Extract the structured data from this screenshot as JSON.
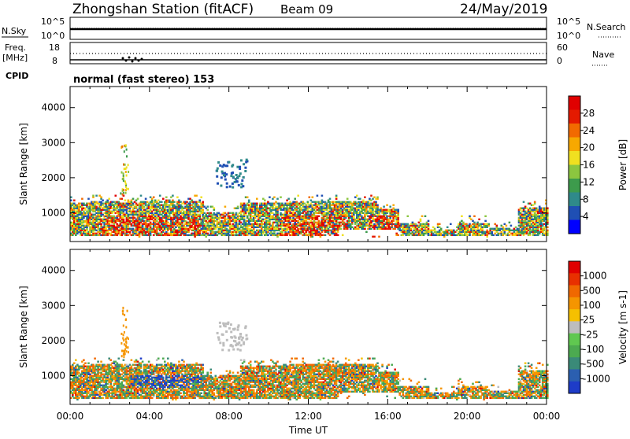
{
  "header": {
    "station_title": "Zhongshan Station (fitACF)",
    "beam": "Beam 09",
    "date": "24/May/2019"
  },
  "strip_labels": {
    "nsky": "N.Sky",
    "nsky_ticks": [
      "10^5",
      "10^0"
    ],
    "nsearch": "N.Search",
    "nsearch_ticks": [
      "10^5",
      "10^0"
    ],
    "freq_label": "Freq.",
    "freq_unit": "[MHz]",
    "freq_ticks": [
      "18",
      "8"
    ],
    "nave": "Nave",
    "nave_ticks": [
      "60",
      "0"
    ],
    "cpid": "CPID",
    "cpid_value": "normal (fast stereo) 153"
  },
  "chart_data": [
    {
      "type": "heatmap",
      "name": "Power",
      "ylabel": "Slant Range [km]",
      "yticks": [
        1000,
        2000,
        3000,
        4000
      ],
      "ylim": [
        180,
        4600
      ],
      "xlim": [
        0,
        24
      ],
      "colorbar": {
        "label": "Power [dB]",
        "ticks": [
          "4",
          "8",
          "12",
          "16",
          "20",
          "24",
          "28"
        ],
        "colors": [
          "#0000ff",
          "#1f4fb4",
          "#2f8a8a",
          "#3d9b4c",
          "#8cc63f",
          "#f0e020",
          "#f7a800",
          "#f26a00",
          "#e41a00",
          "#e00000"
        ]
      }
    },
    {
      "type": "heatmap",
      "name": "Velocity",
      "ylabel": "Slant Range [km]",
      "yticks": [
        1000,
        2000,
        3000,
        4000
      ],
      "ylim": [
        180,
        4600
      ],
      "xlim": [
        0,
        24
      ],
      "xticks": [
        "00:00",
        "04:00",
        "08:00",
        "12:00",
        "16:00",
        "20:00",
        "00:00"
      ],
      "xlabel": "Time UT",
      "colorbar": {
        "label": "Velocity [m s-1]",
        "ticks": [
          "1000",
          "500",
          "100",
          "25",
          "-25",
          "-100",
          "-500",
          "-1000"
        ],
        "colors": [
          "#1e3cc8",
          "#2b5fb0",
          "#3a8a78",
          "#4caa50",
          "#60c850",
          "#bdbdbd",
          "#f5c000",
          "#f59500",
          "#f06800",
          "#e83000",
          "#e00000"
        ]
      }
    }
  ]
}
